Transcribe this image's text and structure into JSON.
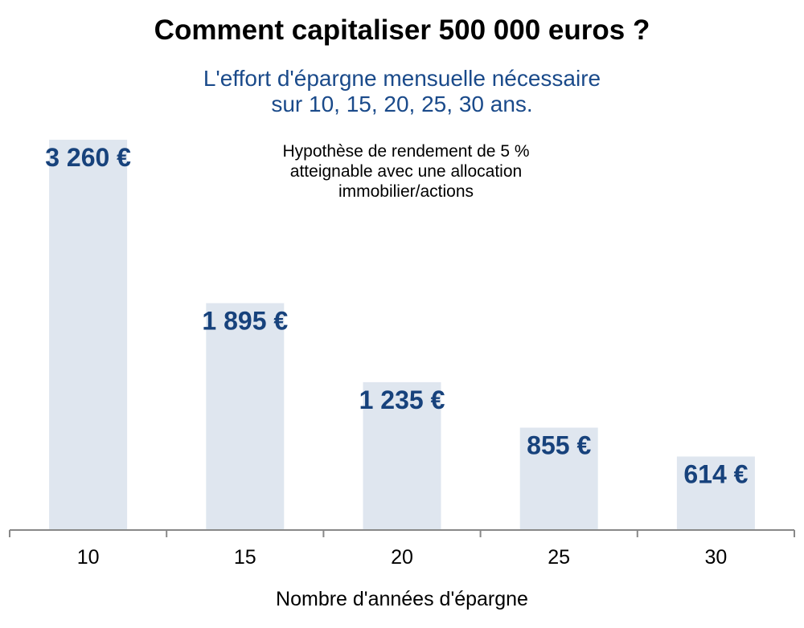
{
  "chart_data": {
    "type": "bar",
    "title": "Comment capitaliser 500 000 euros ?",
    "subtitle_lines": [
      "L'effort d'épargne mensuelle nécessaire",
      "sur 10, 15, 20, 25, 30 ans."
    ],
    "annotation_lines": [
      "Hypothèse de rendement de 5 %",
      "atteignable avec une allocation",
      "immobilier/actions"
    ],
    "categories": [
      "10",
      "15",
      "20",
      "25",
      "30"
    ],
    "values": [
      3260,
      1895,
      1235,
      855,
      614
    ],
    "data_labels": [
      "3 260 €",
      "1 895 €",
      "1 235 €",
      "855 €",
      "614 €"
    ],
    "xlabel": "Nombre d'années d'épargne",
    "ylabel": "",
    "ylim": [
      0,
      3260
    ],
    "grid": false,
    "colors": {
      "bar": "#dfe6ef",
      "label": "#17427c",
      "subtitle": "#1a4a8a",
      "axis": "#888888"
    }
  }
}
